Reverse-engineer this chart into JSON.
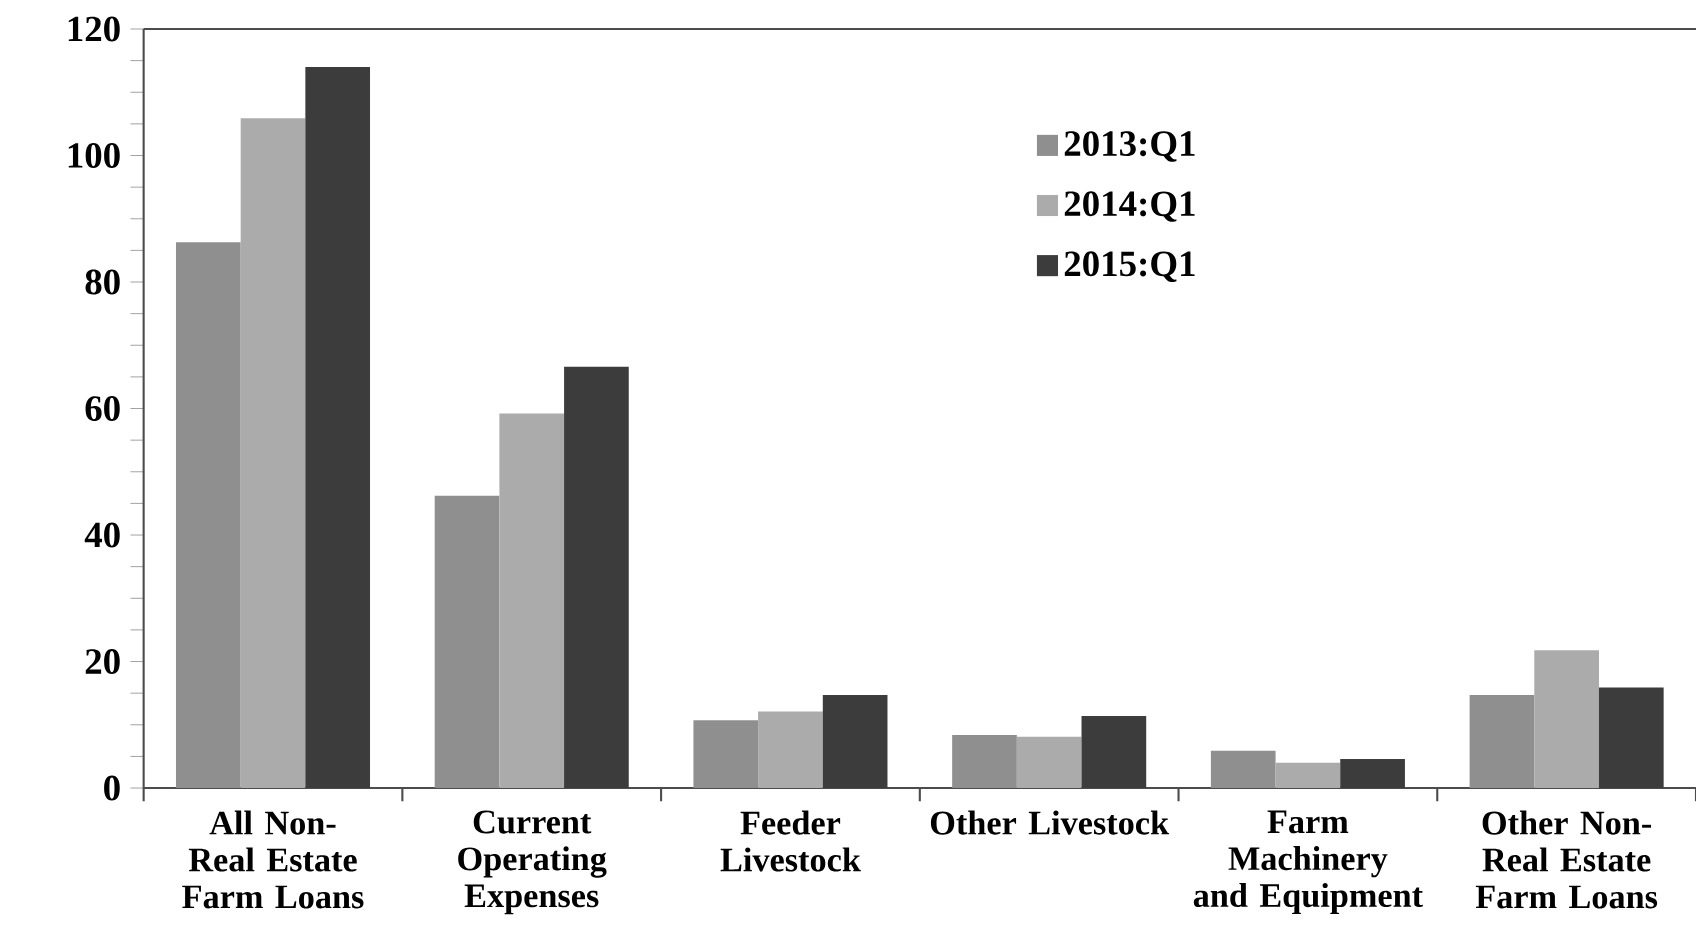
{
  "chart_data": {
    "type": "bar",
    "categories": [
      "All Non-Real Estate Farm Loans",
      "Current Operating Expenses",
      "Feeder Livestock",
      "Other Livestock",
      "Farm Machinery and Equipment",
      "Other Non-Real Estate Farm Loans"
    ],
    "series": [
      {
        "name": "2013:Q1",
        "color": "#8f8f8f",
        "values": [
          86.3,
          46.2,
          10.7,
          8.4,
          5.9,
          14.7
        ]
      },
      {
        "name": "2014:Q1",
        "color": "#ababab",
        "values": [
          105.9,
          59.2,
          12.1,
          8.1,
          4.0,
          21.8
        ]
      },
      {
        "name": "2015:Q1",
        "color": "#3c3c3c",
        "values": [
          114.0,
          66.6,
          14.7,
          11.4,
          4.6,
          15.9
        ]
      }
    ],
    "ylim": [
      0,
      120
    ],
    "yticks": [
      0,
      {
        "value": 5,
        "label": null
      },
      {
        "value": 10,
        "label": null
      },
      {
        "value": 15,
        "label": null
      },
      20,
      {
        "value": 25,
        "label": null
      },
      {
        "value": 30,
        "label": null
      },
      {
        "value": 35,
        "label": null
      },
      40,
      {
        "value": 45,
        "label": null
      },
      {
        "value": 50,
        "label": null
      },
      {
        "value": 55,
        "label": null
      },
      60,
      {
        "value": 65,
        "label": null
      },
      {
        "value": 70,
        "label": null
      },
      {
        "value": 75,
        "label": null
      },
      80,
      {
        "value": 85,
        "label": null
      },
      {
        "value": 90,
        "label": null
      },
      {
        "value": 95,
        "label": null
      },
      100,
      {
        "value": 105,
        "label": null
      },
      {
        "value": 110,
        "label": null
      },
      {
        "value": 115,
        "label": null
      },
      120
    ],
    "legend": "top",
    "grid": false
  }
}
